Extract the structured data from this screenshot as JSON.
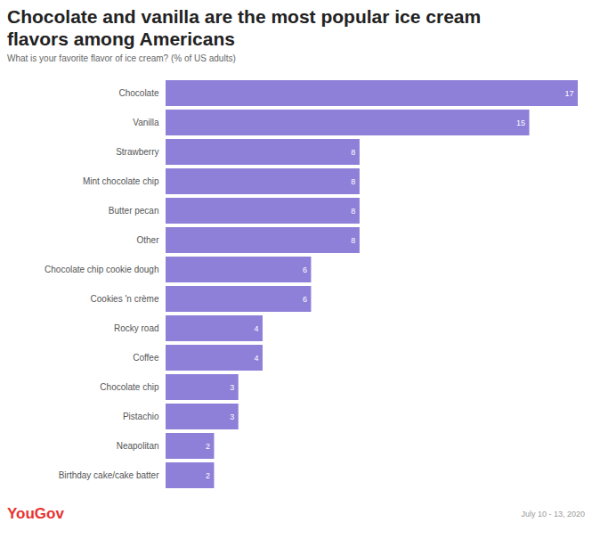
{
  "chart_data": {
    "type": "bar",
    "title": "Chocolate and vanilla are the most popular ice cream flavors among Americans",
    "subtitle": "What is your favorite flavor of ice cream? (% of US adults)",
    "source": "YouGov",
    "date": "July 10 - 13, 2020",
    "orientation": "horizontal",
    "categories": [
      "Chocolate",
      "Vanilla",
      "Strawberry",
      "Mint chocolate chip",
      "Butter pecan",
      "Other",
      "Chocolate chip cookie dough",
      "Cookies 'n crème",
      "Rocky road",
      "Coffee",
      "Chocolate chip",
      "Pistachio",
      "Neapolitan",
      "Birthday cake/cake batter"
    ],
    "values": [
      17,
      15,
      8,
      8,
      8,
      8,
      6,
      6,
      4,
      4,
      3,
      3,
      2,
      2
    ],
    "color": "#8e7fd8",
    "xlim": [
      0,
      17
    ],
    "data_labels": true,
    "tick_labels": "y",
    "grid": false
  }
}
